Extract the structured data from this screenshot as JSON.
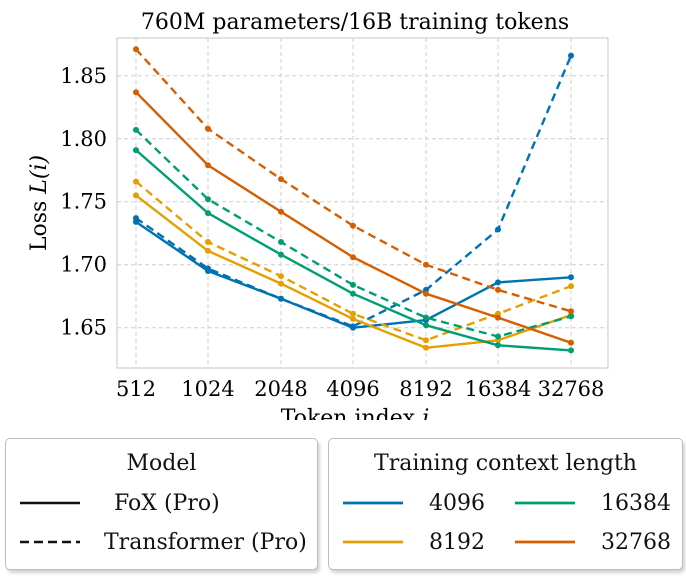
{
  "chart_data": {
    "type": "line",
    "title": "760M parameters/16B training tokens",
    "xlabel": "Token index ",
    "xlabel_italic": "i",
    "ylabel": "Loss ",
    "ylabel_math": "L(i)",
    "categories": [
      "512",
      "1024",
      "2048",
      "4096",
      "8192",
      "16384",
      "32768"
    ],
    "ylim": [
      1.618,
      1.88
    ],
    "yticks": [
      1.65,
      1.7,
      1.75,
      1.8,
      1.85
    ],
    "ytick_labels": [
      "1.65",
      "1.70",
      "1.75",
      "1.80",
      "1.85"
    ],
    "grid": true,
    "series": [
      {
        "name": "FoX (Pro) 4096",
        "model": "FoX (Pro)",
        "context": "4096",
        "style": "solid",
        "color": "#0072b2",
        "values": [
          1.734,
          1.695,
          1.673,
          1.65,
          1.656,
          1.686,
          1.69
        ]
      },
      {
        "name": "Transformer (Pro) 4096",
        "model": "Transformer (Pro)",
        "context": "4096",
        "style": "dashed",
        "color": "#0072b2",
        "values": [
          1.737,
          1.697,
          1.673,
          1.651,
          1.68,
          1.728,
          1.866
        ]
      },
      {
        "name": "FoX (Pro) 8192",
        "model": "FoX (Pro)",
        "context": "8192",
        "style": "solid",
        "color": "#e69f00",
        "values": [
          1.755,
          1.711,
          1.685,
          1.657,
          1.634,
          1.64,
          1.66
        ]
      },
      {
        "name": "Transformer (Pro) 8192",
        "model": "Transformer (Pro)",
        "context": "8192",
        "style": "dashed",
        "color": "#e69f00",
        "values": [
          1.766,
          1.718,
          1.691,
          1.661,
          1.64,
          1.661,
          1.683
        ]
      },
      {
        "name": "FoX (Pro) 16384",
        "model": "FoX (Pro)",
        "context": "16384",
        "style": "solid",
        "color": "#009e73",
        "values": [
          1.791,
          1.741,
          1.708,
          1.677,
          1.652,
          1.636,
          1.632
        ]
      },
      {
        "name": "Transformer (Pro) 16384",
        "model": "Transformer (Pro)",
        "context": "16384",
        "style": "dashed",
        "color": "#009e73",
        "values": [
          1.807,
          1.752,
          1.718,
          1.684,
          1.658,
          1.643,
          1.659
        ]
      },
      {
        "name": "FoX (Pro) 32768",
        "model": "FoX (Pro)",
        "context": "32768",
        "style": "solid",
        "color": "#d55e00",
        "values": [
          1.837,
          1.779,
          1.742,
          1.706,
          1.677,
          1.658,
          1.638
        ]
      },
      {
        "name": "Transformer (Pro) 32768",
        "model": "Transformer (Pro)",
        "context": "32768",
        "style": "dashed",
        "color": "#d55e00",
        "values": [
          1.871,
          1.808,
          1.768,
          1.731,
          1.7,
          1.68,
          1.663
        ]
      }
    ]
  },
  "legend_model": {
    "title": "Model",
    "entries": [
      {
        "label": "FoX (Pro)",
        "style": "solid"
      },
      {
        "label": "Transformer (Pro)",
        "style": "dashed"
      }
    ]
  },
  "legend_context": {
    "title": "Training context length",
    "entries": [
      {
        "label": "4096",
        "color": "#0072b2"
      },
      {
        "label": "16384",
        "color": "#009e73"
      },
      {
        "label": "8192",
        "color": "#e69f00"
      },
      {
        "label": "32768",
        "color": "#d55e00"
      }
    ]
  }
}
